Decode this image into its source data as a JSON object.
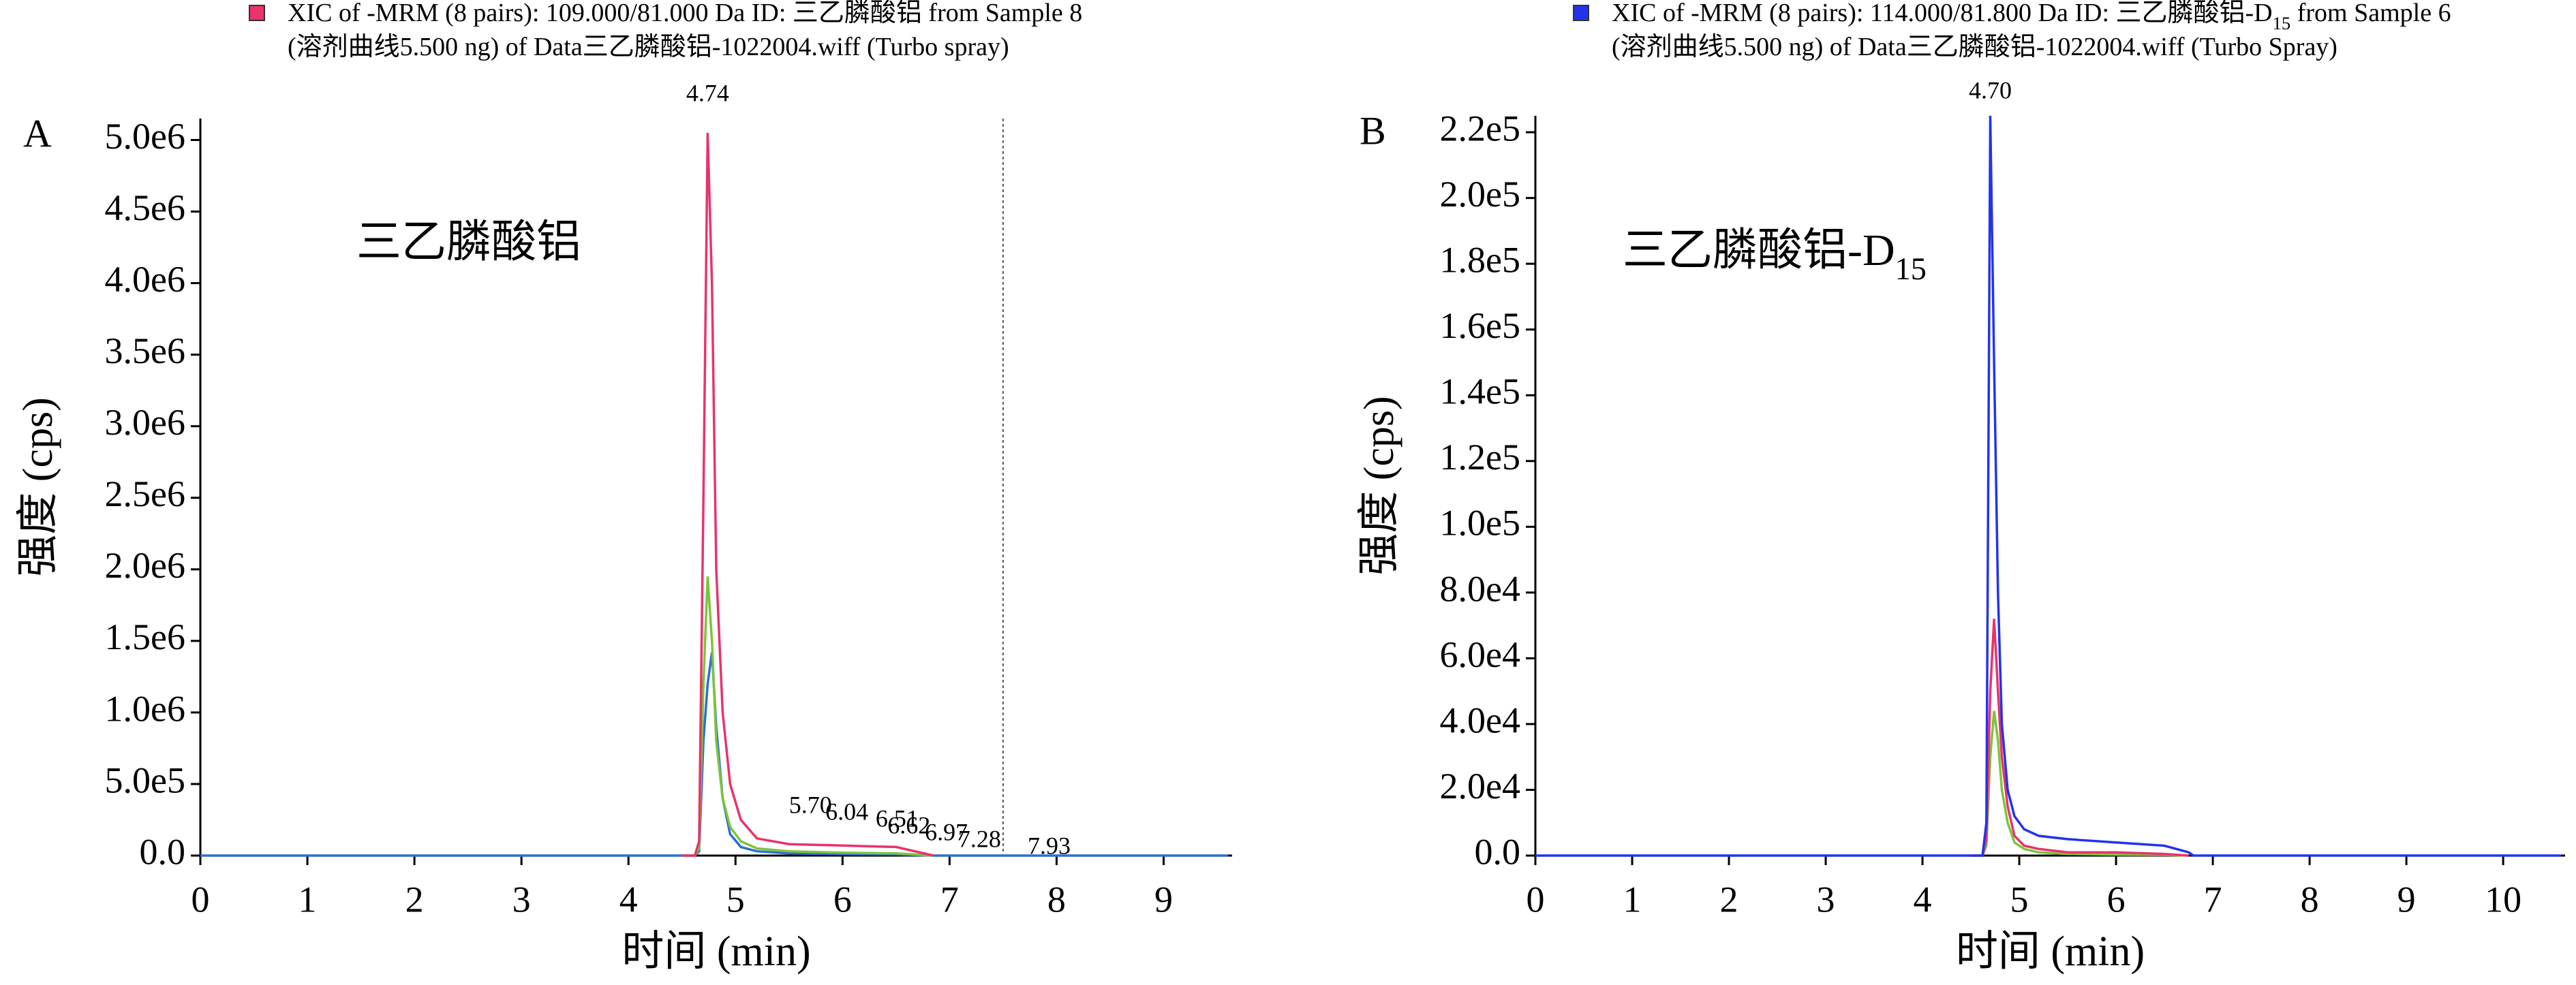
{
  "chart_data": [
    {
      "type": "line",
      "panel_label": "A",
      "annotation": [
        {
          "text": "三乙膦酸铝"
        }
      ],
      "xlabel": "时间 (min)",
      "ylabel": "强度 (cps)",
      "x": [
        0,
        4.5,
        4.62,
        4.66,
        4.7,
        4.74,
        4.78,
        4.82,
        4.88,
        4.95,
        5.05,
        5.2,
        5.5,
        6.0,
        6.5,
        6.85,
        7.0,
        9.6
      ],
      "series": [
        {
          "name": [
            [
              {
                "text": "XIC of -MRM (8 pairs): 109.000/81.000 Da ID: 三乙膦酸铝 from Sample 8"
              }
            ],
            [
              {
                "text": "(溶剂曲线5.500 ng) of Data三乙膦酸铝-1022004.wiff (Turbo spray)"
              }
            ]
          ],
          "color": "#e8336b",
          "values": [
            null,
            0,
            0,
            100000,
            2500000,
            5050000,
            4000000,
            2000000,
            1000000,
            500000,
            250000,
            120000,
            80000,
            70000,
            60000,
            0,
            null,
            null
          ]
        },
        {
          "color": "#7cc43a",
          "values": [
            null,
            0,
            0,
            50000,
            1200000,
            1950000,
            1500000,
            800000,
            400000,
            200000,
            100000,
            50000,
            30000,
            20000,
            15000,
            0,
            null,
            null
          ]
        },
        {
          "color": "#2a6fd6",
          "values": [
            0,
            0,
            0,
            30000,
            800000,
            1200000,
            1420000,
            900000,
            400000,
            150000,
            60000,
            30000,
            15000,
            10000,
            8000,
            0,
            0,
            0
          ]
        }
      ],
      "peak_labels": [
        {
          "value": 4.74,
          "label": "4.74"
        },
        {
          "value": 5.7,
          "label": "5.70"
        },
        {
          "value": 6.04,
          "label": "6.04"
        },
        {
          "value": 6.51,
          "label": "6.51"
        },
        {
          "value": 6.62,
          "label": "6.62"
        },
        {
          "value": 6.97,
          "label": "6.97"
        },
        {
          "value": 7.28,
          "label": "7.28"
        },
        {
          "value": 7.93,
          "label": "7.93"
        }
      ],
      "vlines": [
        7.5
      ],
      "xlim": [
        0,
        9.64
      ],
      "xticks": [
        0,
        1,
        2,
        3,
        4,
        5,
        6,
        7,
        8,
        9
      ],
      "ylim": [
        0,
        5150000
      ],
      "yticks": [
        {
          "value": 0,
          "label": "0.0"
        },
        {
          "value": 500000,
          "label": "5.0e5"
        },
        {
          "value": 1000000,
          "label": "1.0e6"
        },
        {
          "value": 1500000,
          "label": "1.5e6"
        },
        {
          "value": 2000000,
          "label": "2.0e6"
        },
        {
          "value": 2500000,
          "label": "2.5e6"
        },
        {
          "value": 3000000,
          "label": "3.0e6"
        },
        {
          "value": 3500000,
          "label": "3.5e6"
        },
        {
          "value": 4000000,
          "label": "4.0e6"
        },
        {
          "value": 4500000,
          "label": "4.5e6"
        },
        {
          "value": 5000000,
          "label": "5.0e6"
        }
      ]
    },
    {
      "type": "line",
      "panel_label": "B",
      "annotation": [
        {
          "text": "三乙膦酸铝-D"
        },
        {
          "text": "15",
          "sub": true
        }
      ],
      "xlabel": "时间 (min)",
      "ylabel": "强度 (cps)",
      "x": [
        0,
        4.5,
        4.62,
        4.66,
        4.7,
        4.74,
        4.78,
        4.82,
        4.88,
        4.95,
        5.05,
        5.2,
        5.5,
        6.0,
        6.5,
        6.75,
        6.8,
        10.6
      ],
      "series": [
        {
          "name": [
            [
              {
                "text": "XIC of -MRM (8 pairs): 114.000/81.800 Da ID: 三乙膦酸铝-D"
              },
              {
                "text": "15",
                "sub": true
              },
              {
                "text": " from Sample 6"
              }
            ],
            [
              {
                "text": "(溶剂曲线5.500 ng) of Data三乙膦酸铝-1022004.wiff (Turbo Spray)"
              }
            ]
          ],
          "color": "#2233ee",
          "values": [
            0,
            0,
            0,
            10000,
            225000,
            150000,
            80000,
            40000,
            20000,
            12000,
            8000,
            6000,
            5000,
            4000,
            3000,
            1000,
            0,
            0
          ]
        },
        {
          "color": "#e8336b",
          "values": [
            null,
            0,
            0,
            5000,
            50000,
            72000,
            50000,
            30000,
            15000,
            6000,
            3000,
            2000,
            1000,
            1000,
            500,
            0,
            null,
            null
          ]
        },
        {
          "color": "#7cc43a",
          "values": [
            null,
            0,
            0,
            3000,
            30000,
            44000,
            35000,
            20000,
            10000,
            4000,
            2000,
            1000,
            500,
            300,
            200,
            0,
            null,
            null
          ]
        }
      ],
      "peak_labels": [
        {
          "value": 4.7,
          "label": "4.70"
        }
      ],
      "vlines": [],
      "xlim": [
        0,
        10.64
      ],
      "xticks": [
        0,
        1,
        2,
        3,
        4,
        5,
        6,
        7,
        8,
        9,
        10
      ],
      "ylim": [
        0,
        225000
      ],
      "yticks": [
        {
          "value": 0,
          "label": "0.0"
        },
        {
          "value": 20000,
          "label": "2.0e4"
        },
        {
          "value": 40000,
          "label": "4.0e4"
        },
        {
          "value": 60000,
          "label": "6.0e4"
        },
        {
          "value": 80000,
          "label": "8.0e4"
        },
        {
          "value": 100000,
          "label": "1.0e5"
        },
        {
          "value": 120000,
          "label": "1.2e5"
        },
        {
          "value": 140000,
          "label": "1.4e5"
        },
        {
          "value": 160000,
          "label": "1.6e5"
        },
        {
          "value": 180000,
          "label": "1.8e5"
        },
        {
          "value": 200000,
          "label": "2.0e5"
        },
        {
          "value": 220000,
          "label": "2.2e5"
        }
      ]
    }
  ]
}
